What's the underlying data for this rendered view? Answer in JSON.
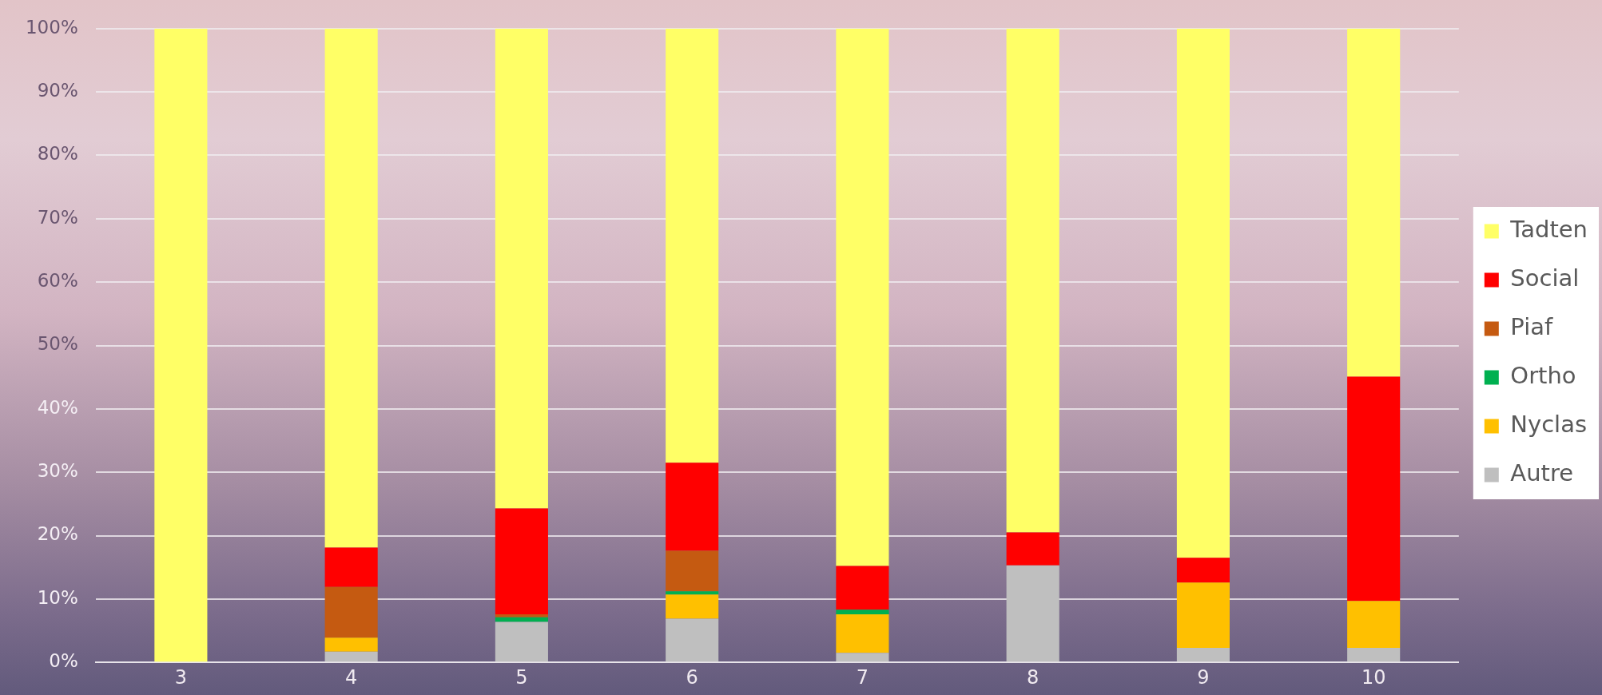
{
  "chart_data": {
    "type": "bar",
    "stacked": true,
    "categories": [
      "3",
      "4",
      "5",
      "6",
      "7",
      "8",
      "9",
      "10"
    ],
    "series": [
      {
        "name": "Autre",
        "color": "#bfbfbf",
        "values": [
          0,
          1.7,
          6.4,
          6.9,
          1.5,
          15.3,
          2.3,
          2.3
        ]
      },
      {
        "name": "Nyclas",
        "color": "#ffc000",
        "values": [
          0,
          2.2,
          0,
          3.8,
          6.1,
          0,
          10.3,
          7.4
        ]
      },
      {
        "name": "Ortho",
        "color": "#00b050",
        "values": [
          0,
          0,
          0.7,
          0.5,
          0.7,
          0,
          0,
          0
        ]
      },
      {
        "name": "Piaf",
        "color": "#c55a11",
        "values": [
          0,
          8.0,
          0.5,
          6.4,
          0,
          0,
          0,
          0
        ]
      },
      {
        "name": "Social",
        "color": "#ff0000",
        "values": [
          0,
          6.2,
          16.7,
          13.9,
          6.9,
          5.2,
          3.9,
          35.4
        ]
      },
      {
        "name": "Tadten",
        "color": "#ffff66",
        "values": [
          100,
          81.9,
          75.7,
          68.5,
          84.8,
          79.5,
          83.5,
          54.9
        ]
      }
    ],
    "ylim": [
      0,
      100
    ],
    "yticks": [
      {
        "value": 0,
        "label": "0%"
      },
      {
        "value": 10,
        "label": "10%"
      },
      {
        "value": 20,
        "label": "20%"
      },
      {
        "value": 30,
        "label": "30%"
      },
      {
        "value": 40,
        "label": "40%"
      },
      {
        "value": 50,
        "label": "50%"
      },
      {
        "value": 60,
        "label": "60%"
      },
      {
        "value": 70,
        "label": "70%"
      },
      {
        "value": 80,
        "label": "80%"
      },
      {
        "value": 90,
        "label": "90%"
      },
      {
        "value": 100,
        "label": "100%"
      }
    ],
    "grid": "y",
    "legend": "right"
  }
}
